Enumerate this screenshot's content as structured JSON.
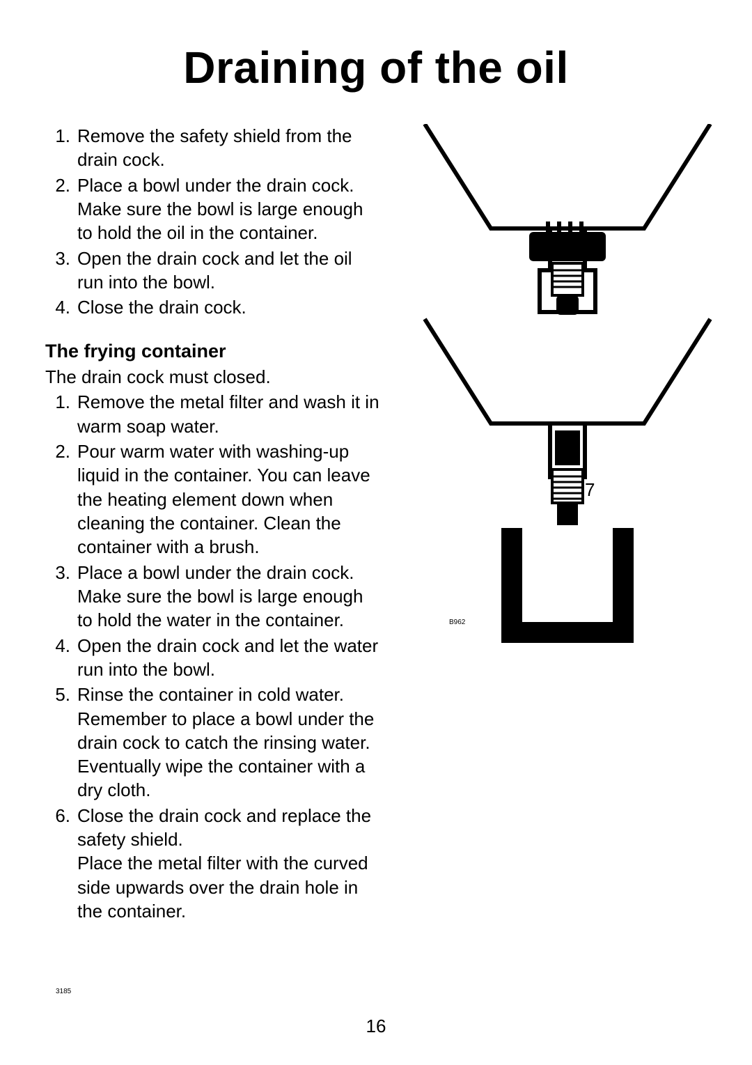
{
  "title": "Draining of the oil",
  "mainSteps": [
    {
      "n": "1.",
      "text": "Remove the safety shield from the drain cock."
    },
    {
      "n": "2.",
      "text": "Place a bowl under the drain cock. Make sure the bowl is large enough to hold the oil in the container."
    },
    {
      "n": "3.",
      "text": "Open the drain cock and let the oil run into the bowl."
    },
    {
      "n": "4.",
      "text": "Close the drain cock."
    }
  ],
  "subheading": "The frying  container",
  "subIntro": "The drain cock must closed.",
  "subSteps": [
    {
      "n": "1.",
      "text": "Remove the metal filter and wash it in warm soap water."
    },
    {
      "n": "2.",
      "text": "Pour warm water with washing-up liquid in the container. You can leave the heating element down when cleaning the container. Clean the container with a brush."
    },
    {
      "n": "3.",
      "text": "Place a bowl under the drain cock. Make sure the bowl is large enough to hold the water in the container."
    },
    {
      "n": "4.",
      "text": "Open the drain cock and let the water run into the bowl."
    },
    {
      "n": "5.",
      "text": "Rinse the container in cold water. Remember to place a bowl under the drain cock to catch the rinsing water.\nEventually wipe the container with a dry cloth."
    },
    {
      "n": "6.",
      "text": "Close the drain cock and replace the safety shield.\nPlace the metal filter with the curved side upwards over the drain hole in the container."
    }
  ],
  "figure": {
    "label7": "7",
    "code": "B962",
    "stroke": "#000000",
    "fill": "#000000",
    "bg": "#ffffff"
  },
  "pageNumber": "16",
  "fineCode": "3185"
}
